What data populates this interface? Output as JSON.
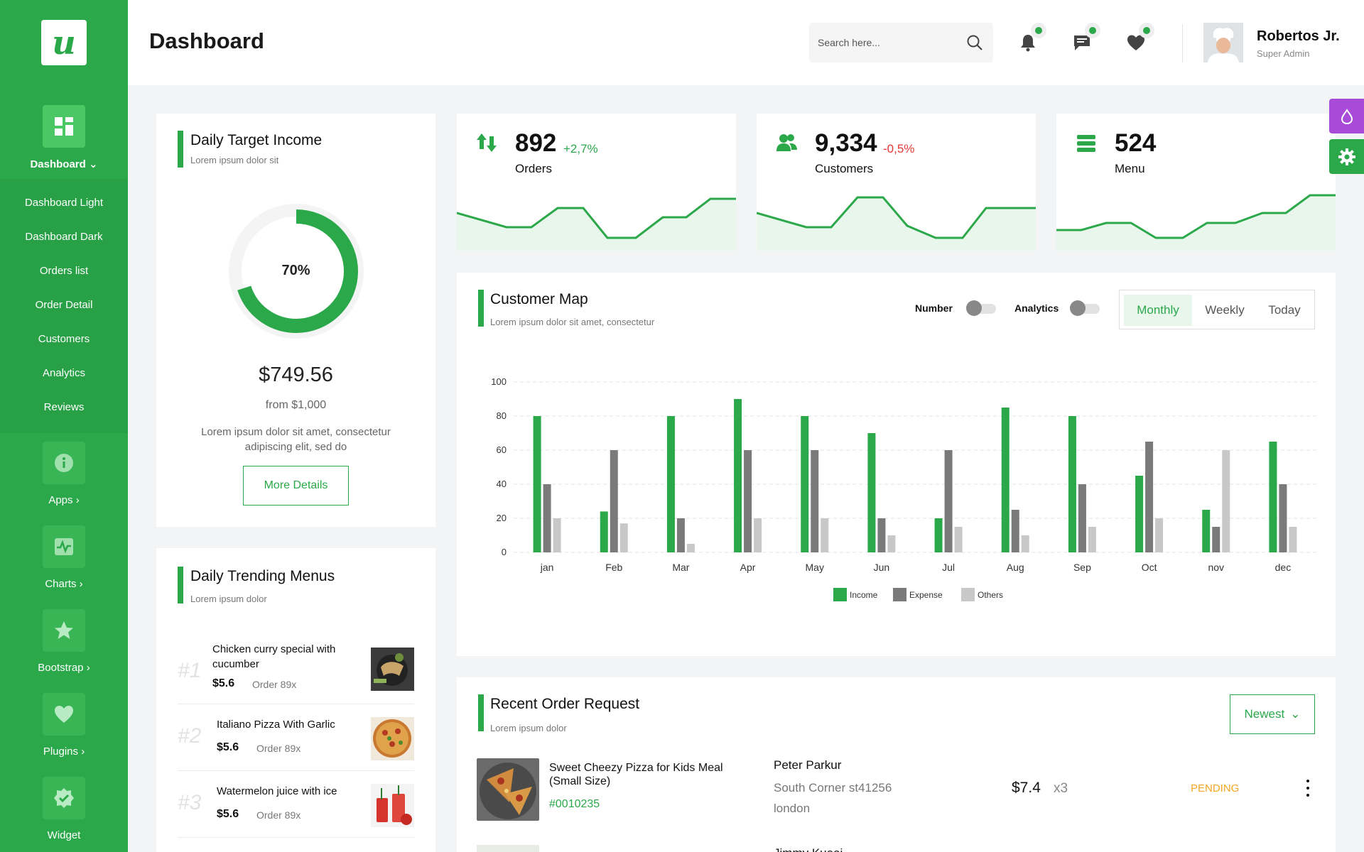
{
  "sidebar": {
    "logo_letter": "u",
    "main": {
      "label": "Dashboard",
      "icon": "dashboard-grid-icon"
    },
    "submenu": [
      "Dashboard Light",
      "Dashboard Dark",
      "Orders list",
      "Order Detail",
      "Customers",
      "Analytics",
      "Reviews"
    ],
    "groups": [
      {
        "label": "Apps",
        "icon": "info-icon"
      },
      {
        "label": "Charts",
        "icon": "chart-line-icon"
      },
      {
        "label": "Bootstrap",
        "icon": "star-icon"
      },
      {
        "label": "Plugins",
        "icon": "heart-icon"
      },
      {
        "label": "Widget",
        "icon": "badge-check-icon"
      }
    ]
  },
  "header": {
    "title": "Dashboard",
    "search_placeholder": "Search here...",
    "user": {
      "name": "Robertos Jr.",
      "role": "Super Admin"
    }
  },
  "income": {
    "title": "Daily Target Income",
    "subtitle": "Lorem ipsum dolor sit",
    "percent_label": "70%",
    "percent": 70,
    "value": "$749.56",
    "from": "from $1,000",
    "description": "Lorem ipsum dolor sit amet, consectetur adipiscing elit, sed do",
    "button": "More Details"
  },
  "stats": [
    {
      "value": "892",
      "delta": "+2,7%",
      "delta_color": "#2ba84a",
      "label": "Orders",
      "icon": "arrows-updown-icon"
    },
    {
      "value": "9,334",
      "delta": "-0,5%",
      "delta_color": "#e53935",
      "label": "Customers",
      "icon": "users-icon"
    },
    {
      "value": "524",
      "delta": "",
      "delta_color": "#2ba84a",
      "label": "Menu",
      "icon": "list-icon"
    }
  ],
  "customer_map": {
    "title": "Customer Map",
    "subtitle": "Lorem ipsum dolor sit amet, consectetur",
    "toggles": [
      "Number",
      "Analytics"
    ],
    "tabs": [
      "Monthly",
      "Weekly",
      "Today"
    ],
    "active_tab": "Monthly"
  },
  "chart_data": {
    "type": "bar",
    "categories": [
      "jan",
      "Feb",
      "Mar",
      "Apr",
      "May",
      "Jun",
      "Jul",
      "Aug",
      "Sep",
      "Oct",
      "nov",
      "dec"
    ],
    "series": [
      {
        "name": "Income",
        "color": "#2ba84a",
        "values": [
          80,
          24,
          80,
          90,
          80,
          70,
          20,
          85,
          80,
          45,
          25,
          65
        ]
      },
      {
        "name": "Expense",
        "color": "#7a7a7a",
        "values": [
          40,
          60,
          20,
          60,
          60,
          20,
          60,
          25,
          40,
          65,
          15,
          40
        ]
      },
      {
        "name": "Others",
        "color": "#c8c8c8",
        "values": [
          20,
          17,
          5,
          20,
          20,
          10,
          15,
          10,
          15,
          20,
          60,
          15
        ]
      }
    ],
    "yticks": [
      "0",
      "20",
      "40",
      "60",
      "80",
      "100"
    ],
    "ylim": [
      0,
      100
    ],
    "grid": true,
    "legend": "bottom-center"
  },
  "trending": {
    "title": "Daily Trending Menus",
    "subtitle": "Lorem ipsum dolor",
    "items": [
      {
        "rank": "#1",
        "name": "Chicken curry special with cucumber",
        "price": "$5.6",
        "orders": "Order 89x"
      },
      {
        "rank": "#2",
        "name": "Italiano Pizza With Garlic",
        "price": "$5.6",
        "orders": "Order 89x"
      },
      {
        "rank": "#3",
        "name": "Watermelon juice with ice",
        "price": "$5.6",
        "orders": "Order 89x"
      }
    ]
  },
  "orders": {
    "title": "Recent Order Request",
    "subtitle": "Lorem ipsum dolor",
    "filter": "Newest",
    "rows": [
      {
        "name": "Sweet Cheezy Pizza for Kids Meal (Small Size)",
        "id": "#0010235",
        "customer": "Peter Parkur",
        "address1": "South Corner st41256",
        "address2": "london",
        "price": "$7.4",
        "qty": "x3",
        "status": "PENDING"
      }
    ],
    "next_customer": "Jimmy Kueai"
  }
}
